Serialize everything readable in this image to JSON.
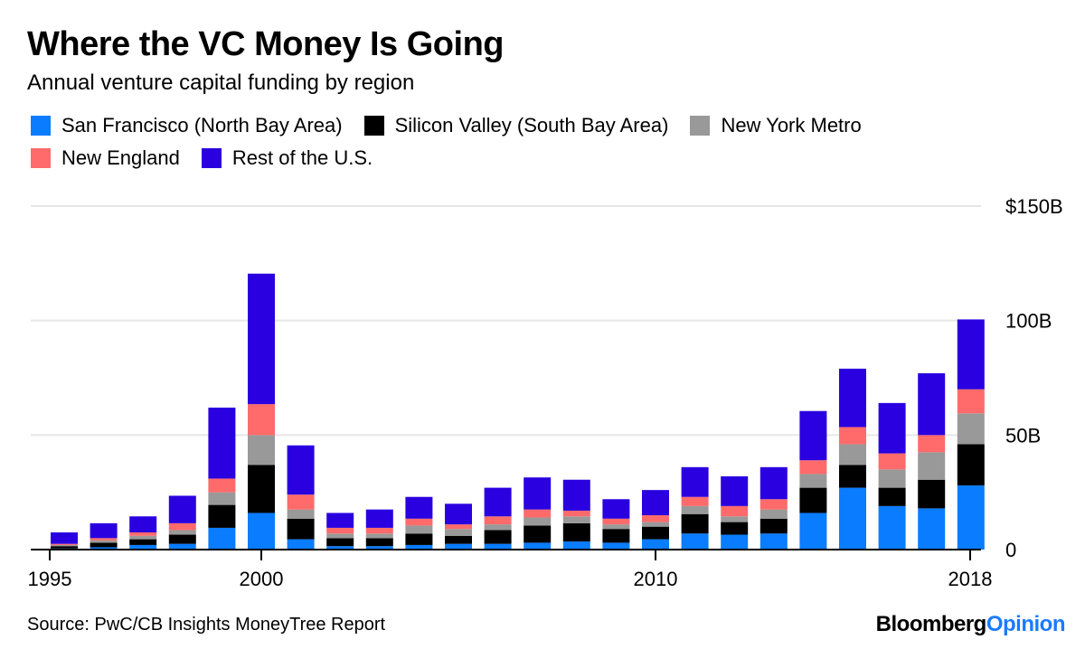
{
  "header": {
    "title": "Where the VC Money Is Going",
    "subtitle": "Annual venture capital funding by region"
  },
  "colors": {
    "san_francisco": "#0a7cff",
    "silicon_valley": "#000000",
    "new_york": "#999999",
    "new_england": "#ff6b6b",
    "rest": "#2a00e0",
    "brand_accent": "#1a7bff"
  },
  "chart_data": {
    "type": "bar",
    "stacked": true,
    "x": [
      1995,
      1996,
      1997,
      1998,
      1999,
      2000,
      2001,
      2002,
      2003,
      2004,
      2005,
      2006,
      2007,
      2008,
      2009,
      2010,
      2011,
      2012,
      2013,
      2014,
      2015,
      2016,
      2017,
      2018
    ],
    "x_ticks": [
      "1995",
      "2000",
      "2010",
      "2018"
    ],
    "y_ticks": [
      "$150B",
      "100B",
      "50B",
      "0"
    ],
    "ylim": [
      0,
      150
    ],
    "series": [
      {
        "name": "San Francisco (North Bay Area)",
        "values": [
          0.5,
          1,
          2,
          2.5,
          9.5,
          16,
          4.5,
          1.5,
          1.5,
          2,
          2.5,
          2.5,
          3,
          3.5,
          3,
          4.5,
          7,
          6.5,
          7,
          16,
          27,
          19,
          18,
          28
        ]
      },
      {
        "name": "Silicon Valley (South Bay Area)",
        "values": [
          1,
          2,
          2.5,
          4,
          10,
          21,
          9,
          3.5,
          3.5,
          5,
          3.5,
          6,
          7.5,
          8,
          6,
          5.5,
          8.5,
          5.5,
          6.5,
          11,
          10,
          8,
          12.5,
          18
        ]
      },
      {
        "name": "New York Metro",
        "values": [
          0.5,
          1,
          1.5,
          2,
          5.5,
          13,
          4,
          2,
          2,
          3.5,
          3,
          2.5,
          3.5,
          3,
          2,
          2,
          3.5,
          2.5,
          4,
          6,
          9,
          8,
          12,
          13.5
        ]
      },
      {
        "name": "New England",
        "values": [
          0.5,
          1,
          1.5,
          3,
          6,
          13.5,
          6.5,
          2.5,
          2.5,
          3,
          2,
          3.5,
          3.5,
          2.5,
          2.5,
          3,
          4,
          4.5,
          4.5,
          6,
          7.5,
          7,
          7.5,
          10.5
        ]
      },
      {
        "name": "Rest of the U.S.",
        "values": [
          5,
          6.5,
          7,
          12,
          31,
          57,
          21.5,
          6.5,
          8,
          9.5,
          9,
          12.5,
          14,
          13.5,
          8.5,
          11,
          13,
          13,
          14,
          21.5,
          25.5,
          22,
          27,
          30.5
        ]
      }
    ],
    "title": "Where the VC Money Is Going",
    "xlabel": "",
    "ylabel": ""
  },
  "footer": {
    "source": "Source: PwC/CB Insights MoneyTree Report",
    "brand_part1": "Bloomberg",
    "brand_part2": "Opinion"
  }
}
